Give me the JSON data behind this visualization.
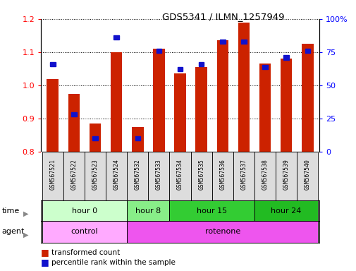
{
  "title": "GDS5341 / ILMN_1257949",
  "samples": [
    "GSM567521",
    "GSM567522",
    "GSM567523",
    "GSM567524",
    "GSM567532",
    "GSM567533",
    "GSM567534",
    "GSM567535",
    "GSM567536",
    "GSM567537",
    "GSM567538",
    "GSM567539",
    "GSM567540"
  ],
  "red_values": [
    1.02,
    0.975,
    0.885,
    1.1,
    0.875,
    1.11,
    1.035,
    1.055,
    1.135,
    1.19,
    1.065,
    1.08,
    1.125
  ],
  "blue_values_pct": [
    66,
    28,
    10,
    86,
    10,
    76,
    62,
    66,
    83,
    83,
    64,
    71,
    76
  ],
  "ylim_left": [
    0.8,
    1.2
  ],
  "ylim_right": [
    0,
    100
  ],
  "yticks_left": [
    0.8,
    0.9,
    1.0,
    1.1,
    1.2
  ],
  "ytick_labels_left": [
    "0.8",
    "0.9",
    "1.0",
    "1.1",
    "1.2"
  ],
  "yticks_right": [
    0,
    25,
    50,
    75,
    100
  ],
  "ytick_labels_right": [
    "0",
    "25",
    "50",
    "75",
    "100%"
  ],
  "time_groups": [
    {
      "label": "hour 0",
      "start": 0,
      "end": 4,
      "color": "#ccffcc"
    },
    {
      "label": "hour 8",
      "start": 4,
      "end": 6,
      "color": "#88ee88"
    },
    {
      "label": "hour 15",
      "start": 6,
      "end": 10,
      "color": "#33cc33"
    },
    {
      "label": "hour 24",
      "start": 10,
      "end": 13,
      "color": "#22bb22"
    }
  ],
  "agent_groups": [
    {
      "label": "control",
      "start": 0,
      "end": 4,
      "color": "#ffaaff"
    },
    {
      "label": "rotenone",
      "start": 4,
      "end": 13,
      "color": "#ee55ee"
    }
  ],
  "bar_color": "#cc2200",
  "blue_marker_color": "#1111cc",
  "background_color": "#ffffff",
  "legend_red": "transformed count",
  "legend_blue": "percentile rank within the sample",
  "time_label": "time",
  "agent_label": "agent"
}
